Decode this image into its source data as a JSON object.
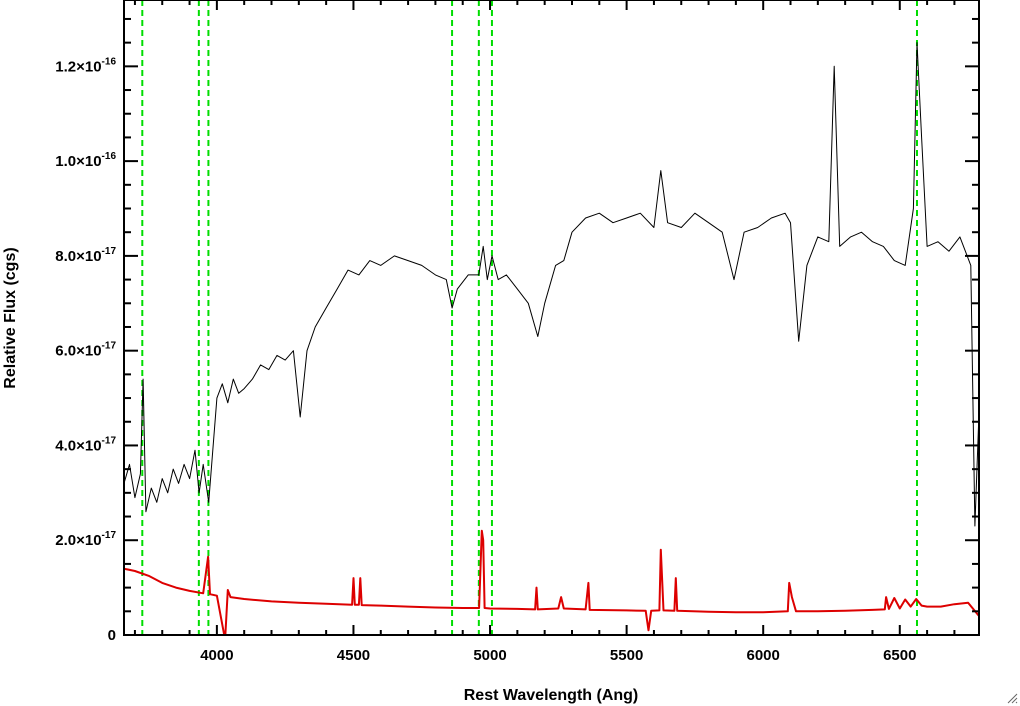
{
  "chart_data": {
    "type": "line",
    "title": "",
    "xlabel": "Rest Wavelength (Ang)",
    "ylabel": "Relative Flux (cgs)",
    "xlim": [
      3660,
      6790
    ],
    "ylim": [
      0,
      1.34e-16
    ],
    "grid": false,
    "x_ticks": [
      {
        "value": 4000,
        "label": "4000"
      },
      {
        "value": 4500,
        "label": "4500"
      },
      {
        "value": 5000,
        "label": "5000"
      },
      {
        "value": 5500,
        "label": "5500"
      },
      {
        "value": 6000,
        "label": "6000"
      },
      {
        "value": 6500,
        "label": "6500"
      }
    ],
    "y_ticks": [
      {
        "value": 0,
        "mantissa": "0",
        "exponent": ""
      },
      {
        "value": 2e-17,
        "mantissa": "2.0×10",
        "exponent": "-17"
      },
      {
        "value": 4e-17,
        "mantissa": "4.0×10",
        "exponent": "-17"
      },
      {
        "value": 6e-17,
        "mantissa": "6.0×10",
        "exponent": "-17"
      },
      {
        "value": 8e-17,
        "mantissa": "8.0×10",
        "exponent": "-17"
      },
      {
        "value": 1e-16,
        "mantissa": "1.0×10",
        "exponent": "-16"
      },
      {
        "value": 1.2e-16,
        "mantissa": "1.2×10",
        "exponent": "-16"
      }
    ],
    "reference_lines": {
      "color": "#00dd00",
      "style": "dashed",
      "x": [
        3727,
        3934,
        3969,
        4861,
        4959,
        5007,
        6563
      ]
    },
    "series": [
      {
        "color": "#000000",
        "points": [
          [
            3660,
            3.2e-17
          ],
          [
            3680,
            3.6e-17
          ],
          [
            3700,
            2.9e-17
          ],
          [
            3720,
            3.4e-17
          ],
          [
            3730,
            5.4e-17
          ],
          [
            3740,
            2.6e-17
          ],
          [
            3760,
            3.1e-17
          ],
          [
            3780,
            2.8e-17
          ],
          [
            3800,
            3.3e-17
          ],
          [
            3820,
            3e-17
          ],
          [
            3840,
            3.5e-17
          ],
          [
            3860,
            3.2e-17
          ],
          [
            3880,
            3.6e-17
          ],
          [
            3900,
            3.3e-17
          ],
          [
            3920,
            3.9e-17
          ],
          [
            3935,
            3e-17
          ],
          [
            3950,
            3.6e-17
          ],
          [
            3970,
            2.8e-17
          ],
          [
            3985,
            3.9e-17
          ],
          [
            4000,
            5e-17
          ],
          [
            4020,
            5.3e-17
          ],
          [
            4040,
            4.9e-17
          ],
          [
            4060,
            5.4e-17
          ],
          [
            4080,
            5.1e-17
          ],
          [
            4100,
            5.2e-17
          ],
          [
            4130,
            5.4e-17
          ],
          [
            4160,
            5.7e-17
          ],
          [
            4190,
            5.6e-17
          ],
          [
            4220,
            5.9e-17
          ],
          [
            4250,
            5.8e-17
          ],
          [
            4280,
            6e-17
          ],
          [
            4305,
            4.6e-17
          ],
          [
            4330,
            6e-17
          ],
          [
            4360,
            6.5e-17
          ],
          [
            4400,
            6.9e-17
          ],
          [
            4440,
            7.3e-17
          ],
          [
            4480,
            7.7e-17
          ],
          [
            4520,
            7.6e-17
          ],
          [
            4560,
            7.9e-17
          ],
          [
            4600,
            7.8e-17
          ],
          [
            4650,
            8e-17
          ],
          [
            4700,
            7.9e-17
          ],
          [
            4750,
            7.8e-17
          ],
          [
            4800,
            7.6e-17
          ],
          [
            4840,
            7.5e-17
          ],
          [
            4861,
            6.9e-17
          ],
          [
            4880,
            7.3e-17
          ],
          [
            4920,
            7.6e-17
          ],
          [
            4959,
            7.6e-17
          ],
          [
            4975,
            8.2e-17
          ],
          [
            4990,
            7.5e-17
          ],
          [
            5007,
            8e-17
          ],
          [
            5030,
            7.5e-17
          ],
          [
            5060,
            7.6e-17
          ],
          [
            5100,
            7.3e-17
          ],
          [
            5140,
            7e-17
          ],
          [
            5175,
            6.3e-17
          ],
          [
            5200,
            7e-17
          ],
          [
            5240,
            7.8e-17
          ],
          [
            5270,
            7.9e-17
          ],
          [
            5300,
            8.5e-17
          ],
          [
            5350,
            8.8e-17
          ],
          [
            5400,
            8.9e-17
          ],
          [
            5450,
            8.7e-17
          ],
          [
            5500,
            8.8e-17
          ],
          [
            5550,
            8.9e-17
          ],
          [
            5600,
            8.6e-17
          ],
          [
            5625,
            9.8e-17
          ],
          [
            5650,
            8.7e-17
          ],
          [
            5700,
            8.6e-17
          ],
          [
            5750,
            8.9e-17
          ],
          [
            5800,
            8.7e-17
          ],
          [
            5850,
            8.5e-17
          ],
          [
            5893,
            7.5e-17
          ],
          [
            5930,
            8.5e-17
          ],
          [
            5980,
            8.6e-17
          ],
          [
            6030,
            8.8e-17
          ],
          [
            6080,
            8.9e-17
          ],
          [
            6100,
            8.7e-17
          ],
          [
            6130,
            6.2e-17
          ],
          [
            6160,
            7.8e-17
          ],
          [
            6200,
            8.4e-17
          ],
          [
            6240,
            8.3e-17
          ],
          [
            6260,
            1.2e-16
          ],
          [
            6280,
            8.2e-17
          ],
          [
            6320,
            8.4e-17
          ],
          [
            6360,
            8.5e-17
          ],
          [
            6400,
            8.3e-17
          ],
          [
            6440,
            8.2e-17
          ],
          [
            6480,
            7.9e-17
          ],
          [
            6520,
            7.8e-17
          ],
          [
            6550,
            9e-17
          ],
          [
            6563,
            1.25e-16
          ],
          [
            6580,
            1.05e-16
          ],
          [
            6600,
            8.2e-17
          ],
          [
            6640,
            8.3e-17
          ],
          [
            6680,
            8.1e-17
          ],
          [
            6720,
            8.4e-17
          ],
          [
            6760,
            7.8e-17
          ],
          [
            6775,
            2.3e-17
          ],
          [
            6790,
            4.7e-17
          ]
        ]
      },
      {
        "color": "#dd0000",
        "points": [
          [
            3660,
            1.4e-17
          ],
          [
            3700,
            1.35e-17
          ],
          [
            3750,
            1.25e-17
          ],
          [
            3800,
            1.1e-17
          ],
          [
            3850,
            1e-17
          ],
          [
            3900,
            9.3e-18
          ],
          [
            3950,
            8.8e-18
          ],
          [
            3968,
            1.65e-17
          ],
          [
            3975,
            8.6e-18
          ],
          [
            4000,
            8.3e-18
          ],
          [
            4030,
            -1e-18
          ],
          [
            4040,
            9.5e-18
          ],
          [
            4050,
            8e-18
          ],
          [
            4100,
            7.6e-18
          ],
          [
            4200,
            7.1e-18
          ],
          [
            4300,
            6.8e-18
          ],
          [
            4400,
            6.6e-18
          ],
          [
            4495,
            6.4e-18
          ],
          [
            4500,
            1.2e-17
          ],
          [
            4505,
            6.4e-18
          ],
          [
            4520,
            6.4e-18
          ],
          [
            4525,
            1.2e-17
          ],
          [
            4530,
            6.3e-18
          ],
          [
            4600,
            6.2e-18
          ],
          [
            4700,
            6e-18
          ],
          [
            4800,
            5.8e-18
          ],
          [
            4900,
            5.7e-18
          ],
          [
            4960,
            5.7e-18
          ],
          [
            4970,
            2.2e-17
          ],
          [
            4975,
            2e-17
          ],
          [
            4980,
            5.7e-18
          ],
          [
            5000,
            5.6e-18
          ],
          [
            5100,
            5.5e-18
          ],
          [
            5165,
            5.4e-18
          ],
          [
            5170,
            1e-17
          ],
          [
            5175,
            5.4e-18
          ],
          [
            5250,
            5.6e-18
          ],
          [
            5260,
            8e-18
          ],
          [
            5270,
            5.6e-18
          ],
          [
            5350,
            5.4e-18
          ],
          [
            5360,
            1.1e-17
          ],
          [
            5365,
            5.3e-18
          ],
          [
            5500,
            5.2e-18
          ],
          [
            5570,
            5.1e-18
          ],
          [
            5580,
            1e-18
          ],
          [
            5590,
            5.1e-18
          ],
          [
            5620,
            5.2e-18
          ],
          [
            5625,
            1.8e-17
          ],
          [
            5635,
            5.2e-18
          ],
          [
            5675,
            5.1e-18
          ],
          [
            5680,
            1.2e-17
          ],
          [
            5685,
            5.1e-18
          ],
          [
            5800,
            4.9e-18
          ],
          [
            5900,
            4.8e-18
          ],
          [
            6000,
            4.8e-18
          ],
          [
            6090,
            5e-18
          ],
          [
            6095,
            1.1e-17
          ],
          [
            6105,
            8e-18
          ],
          [
            6120,
            5e-18
          ],
          [
            6200,
            5e-18
          ],
          [
            6300,
            5.1e-18
          ],
          [
            6400,
            5.3e-18
          ],
          [
            6445,
            5.4e-18
          ],
          [
            6450,
            8e-18
          ],
          [
            6460,
            5.5e-18
          ],
          [
            6480,
            7.8e-18
          ],
          [
            6500,
            5.6e-18
          ],
          [
            6520,
            7.5e-18
          ],
          [
            6540,
            6e-18
          ],
          [
            6560,
            7.6e-18
          ],
          [
            6580,
            6.2e-18
          ],
          [
            6600,
            6e-18
          ],
          [
            6650,
            6e-18
          ],
          [
            6700,
            6.5e-18
          ],
          [
            6750,
            6.8e-18
          ],
          [
            6790,
            4e-18
          ]
        ]
      }
    ]
  }
}
